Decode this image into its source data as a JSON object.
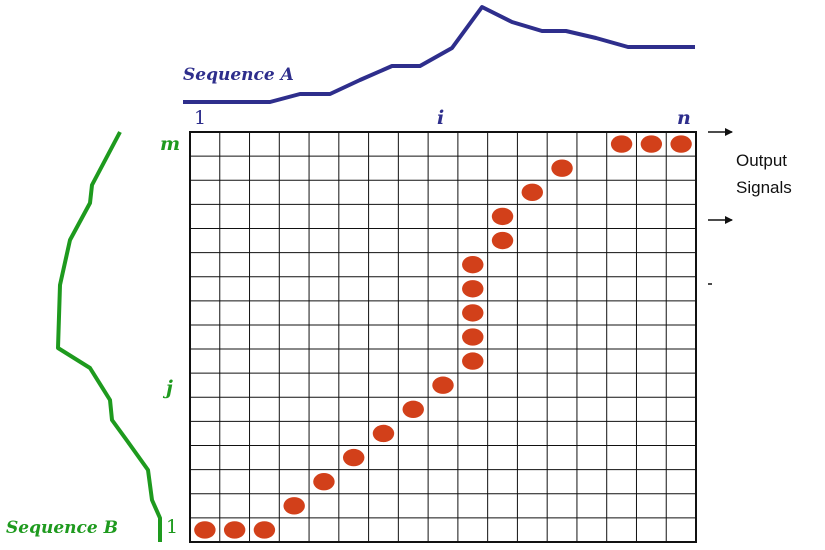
{
  "labels": {
    "sequence_a": "Sequence A",
    "sequence_b": "Sequence B",
    "col_start": "1",
    "col_mid": "i",
    "col_end": "n",
    "row_end": "m",
    "row_mid": "j",
    "row_start": "1",
    "output_line1": "Output",
    "output_line2": "Signals"
  },
  "grid": {
    "columns": 17,
    "rows": 17
  },
  "path_cells": [
    [
      1,
      1
    ],
    [
      2,
      1
    ],
    [
      3,
      1
    ],
    [
      4,
      2
    ],
    [
      5,
      3
    ],
    [
      6,
      4
    ],
    [
      7,
      5
    ],
    [
      8,
      6
    ],
    [
      9,
      7
    ],
    [
      10,
      8
    ],
    [
      10,
      9
    ],
    [
      10,
      10
    ],
    [
      10,
      11
    ],
    [
      10,
      12
    ],
    [
      11,
      13
    ],
    [
      11,
      14
    ],
    [
      12,
      15
    ],
    [
      13,
      16
    ],
    [
      15,
      17
    ],
    [
      16,
      17
    ],
    [
      17,
      17
    ]
  ],
  "colors": {
    "sequence_a": "#2e2e8c",
    "sequence_b": "#1e9a1e",
    "dot": "#d2401a",
    "grid": "#111111",
    "axis_a": "#2e2e8c",
    "axis_b": "#1e9a1e"
  }
}
